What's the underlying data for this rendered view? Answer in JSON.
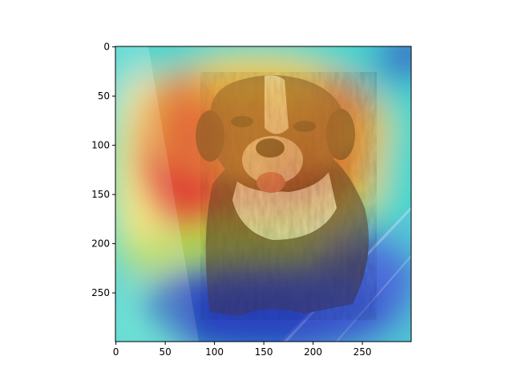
{
  "chart_data": {
    "type": "heatmap",
    "title": "",
    "xlabel": "",
    "ylabel": "",
    "image": {
      "description_kind": "grad-cam overlay",
      "colormap": "jet",
      "width": 300,
      "height": 300
    },
    "xlim": [
      0,
      300
    ],
    "ylim": [
      300,
      0
    ],
    "x_ticks": [
      0,
      50,
      100,
      150,
      200,
      250
    ],
    "y_ticks": [
      0,
      50,
      100,
      150,
      200,
      250
    ],
    "grid": false
  }
}
